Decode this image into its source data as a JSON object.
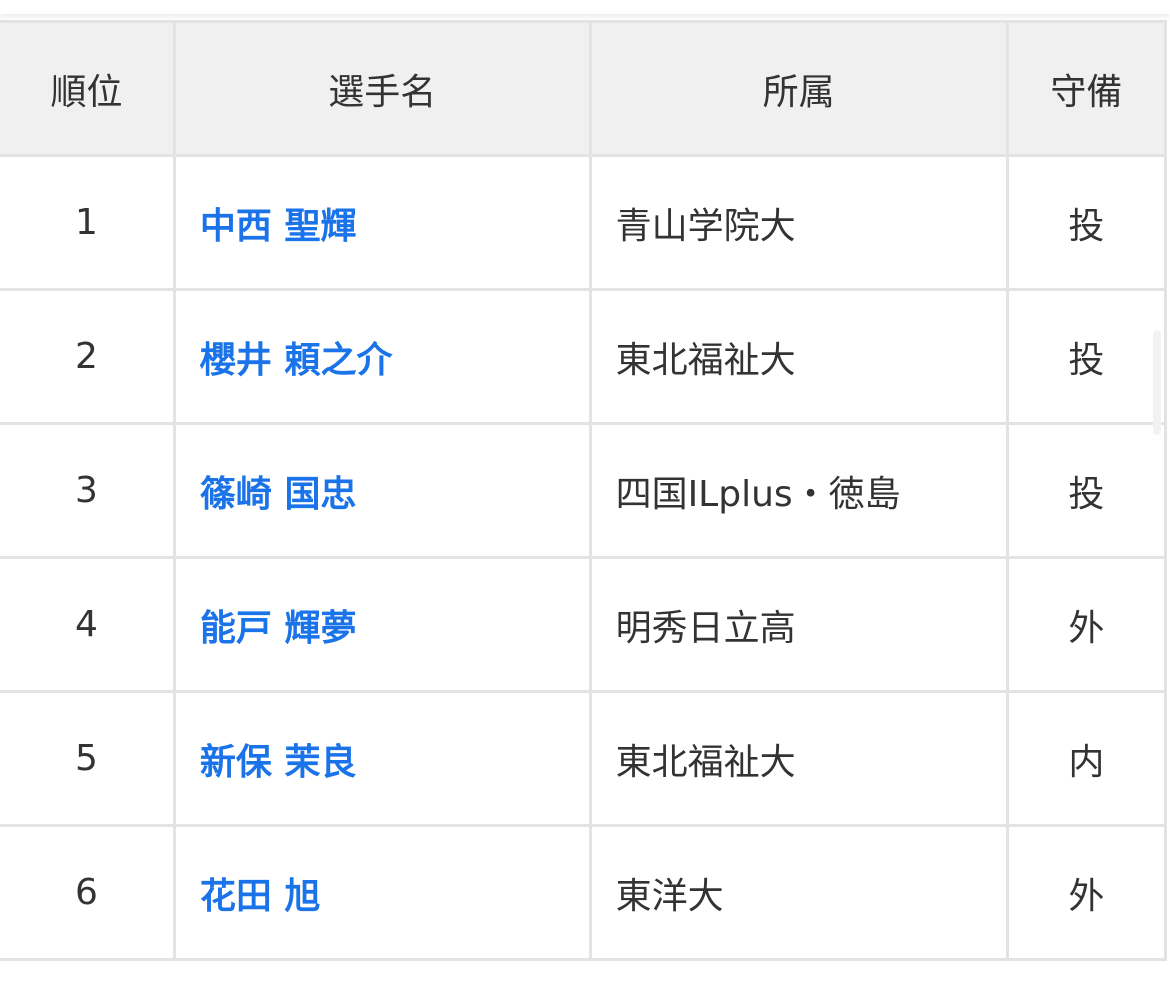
{
  "headers": {
    "rank": "順位",
    "name": "選手名",
    "team": "所属",
    "position": "守備"
  },
  "rows": [
    {
      "rank": "1",
      "name": "中西 聖輝",
      "team": "青山学院大",
      "position": "投"
    },
    {
      "rank": "2",
      "name": "櫻井 頼之介",
      "team": "東北福祉大",
      "position": "投"
    },
    {
      "rank": "3",
      "name": "篠崎 国忠",
      "team": "四国ILplus・徳島",
      "position": "投"
    },
    {
      "rank": "4",
      "name": "能戸 輝夢",
      "team": "明秀日立高",
      "position": "外"
    },
    {
      "rank": "5",
      "name": "新保 茉良",
      "team": "東北福祉大",
      "position": "内"
    },
    {
      "rank": "6",
      "name": "花田 旭",
      "team": "東洋大",
      "position": "外"
    }
  ],
  "colors": {
    "link": "#1a73e8",
    "header_bg": "#f0f0f0",
    "border": "#e3e3e3"
  }
}
